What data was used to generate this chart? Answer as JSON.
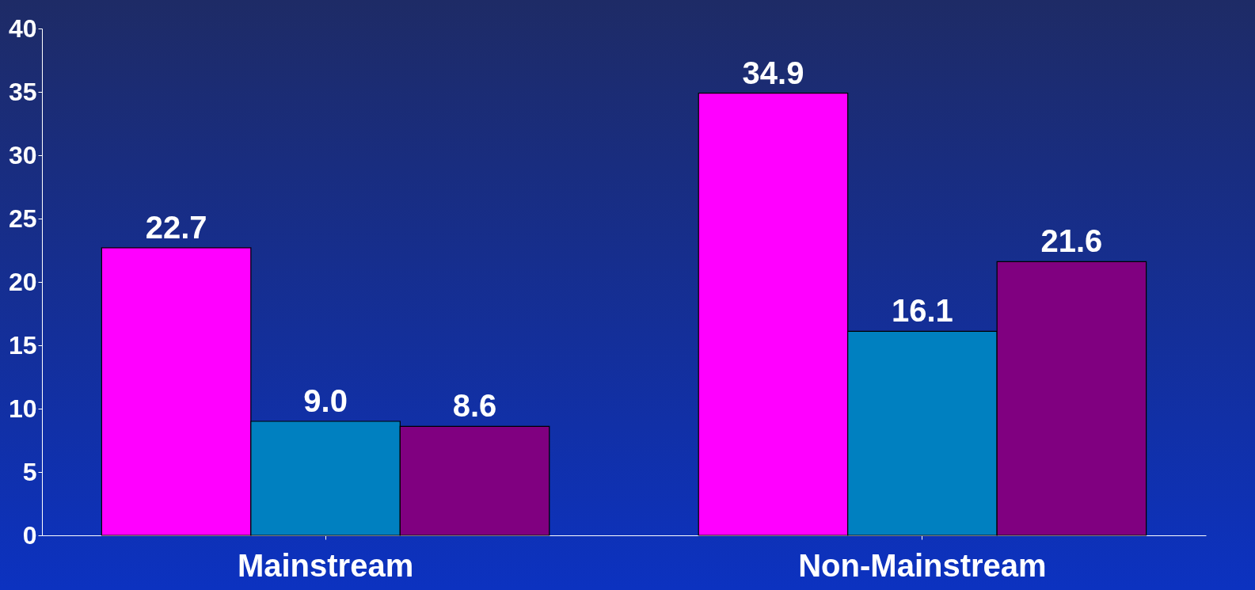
{
  "chart_data": {
    "type": "bar",
    "categories": [
      "Mainstream",
      "Non-Mainstream"
    ],
    "series": [
      {
        "color": "#ff00ff",
        "values": [
          22.7,
          34.9
        ],
        "value_labels": [
          "22.7",
          "34.9"
        ]
      },
      {
        "color": "#0080c0",
        "values": [
          9.0,
          16.1
        ],
        "value_labels": [
          "9.0",
          "16.1"
        ]
      },
      {
        "color": "#800080",
        "values": [
          8.6,
          21.6
        ],
        "value_labels": [
          "8.6",
          "21.6"
        ]
      }
    ],
    "ylim": [
      0,
      40
    ],
    "yticks": [
      0,
      5,
      10,
      15,
      20,
      25,
      30,
      35,
      40
    ],
    "grid": false,
    "legend": false
  }
}
